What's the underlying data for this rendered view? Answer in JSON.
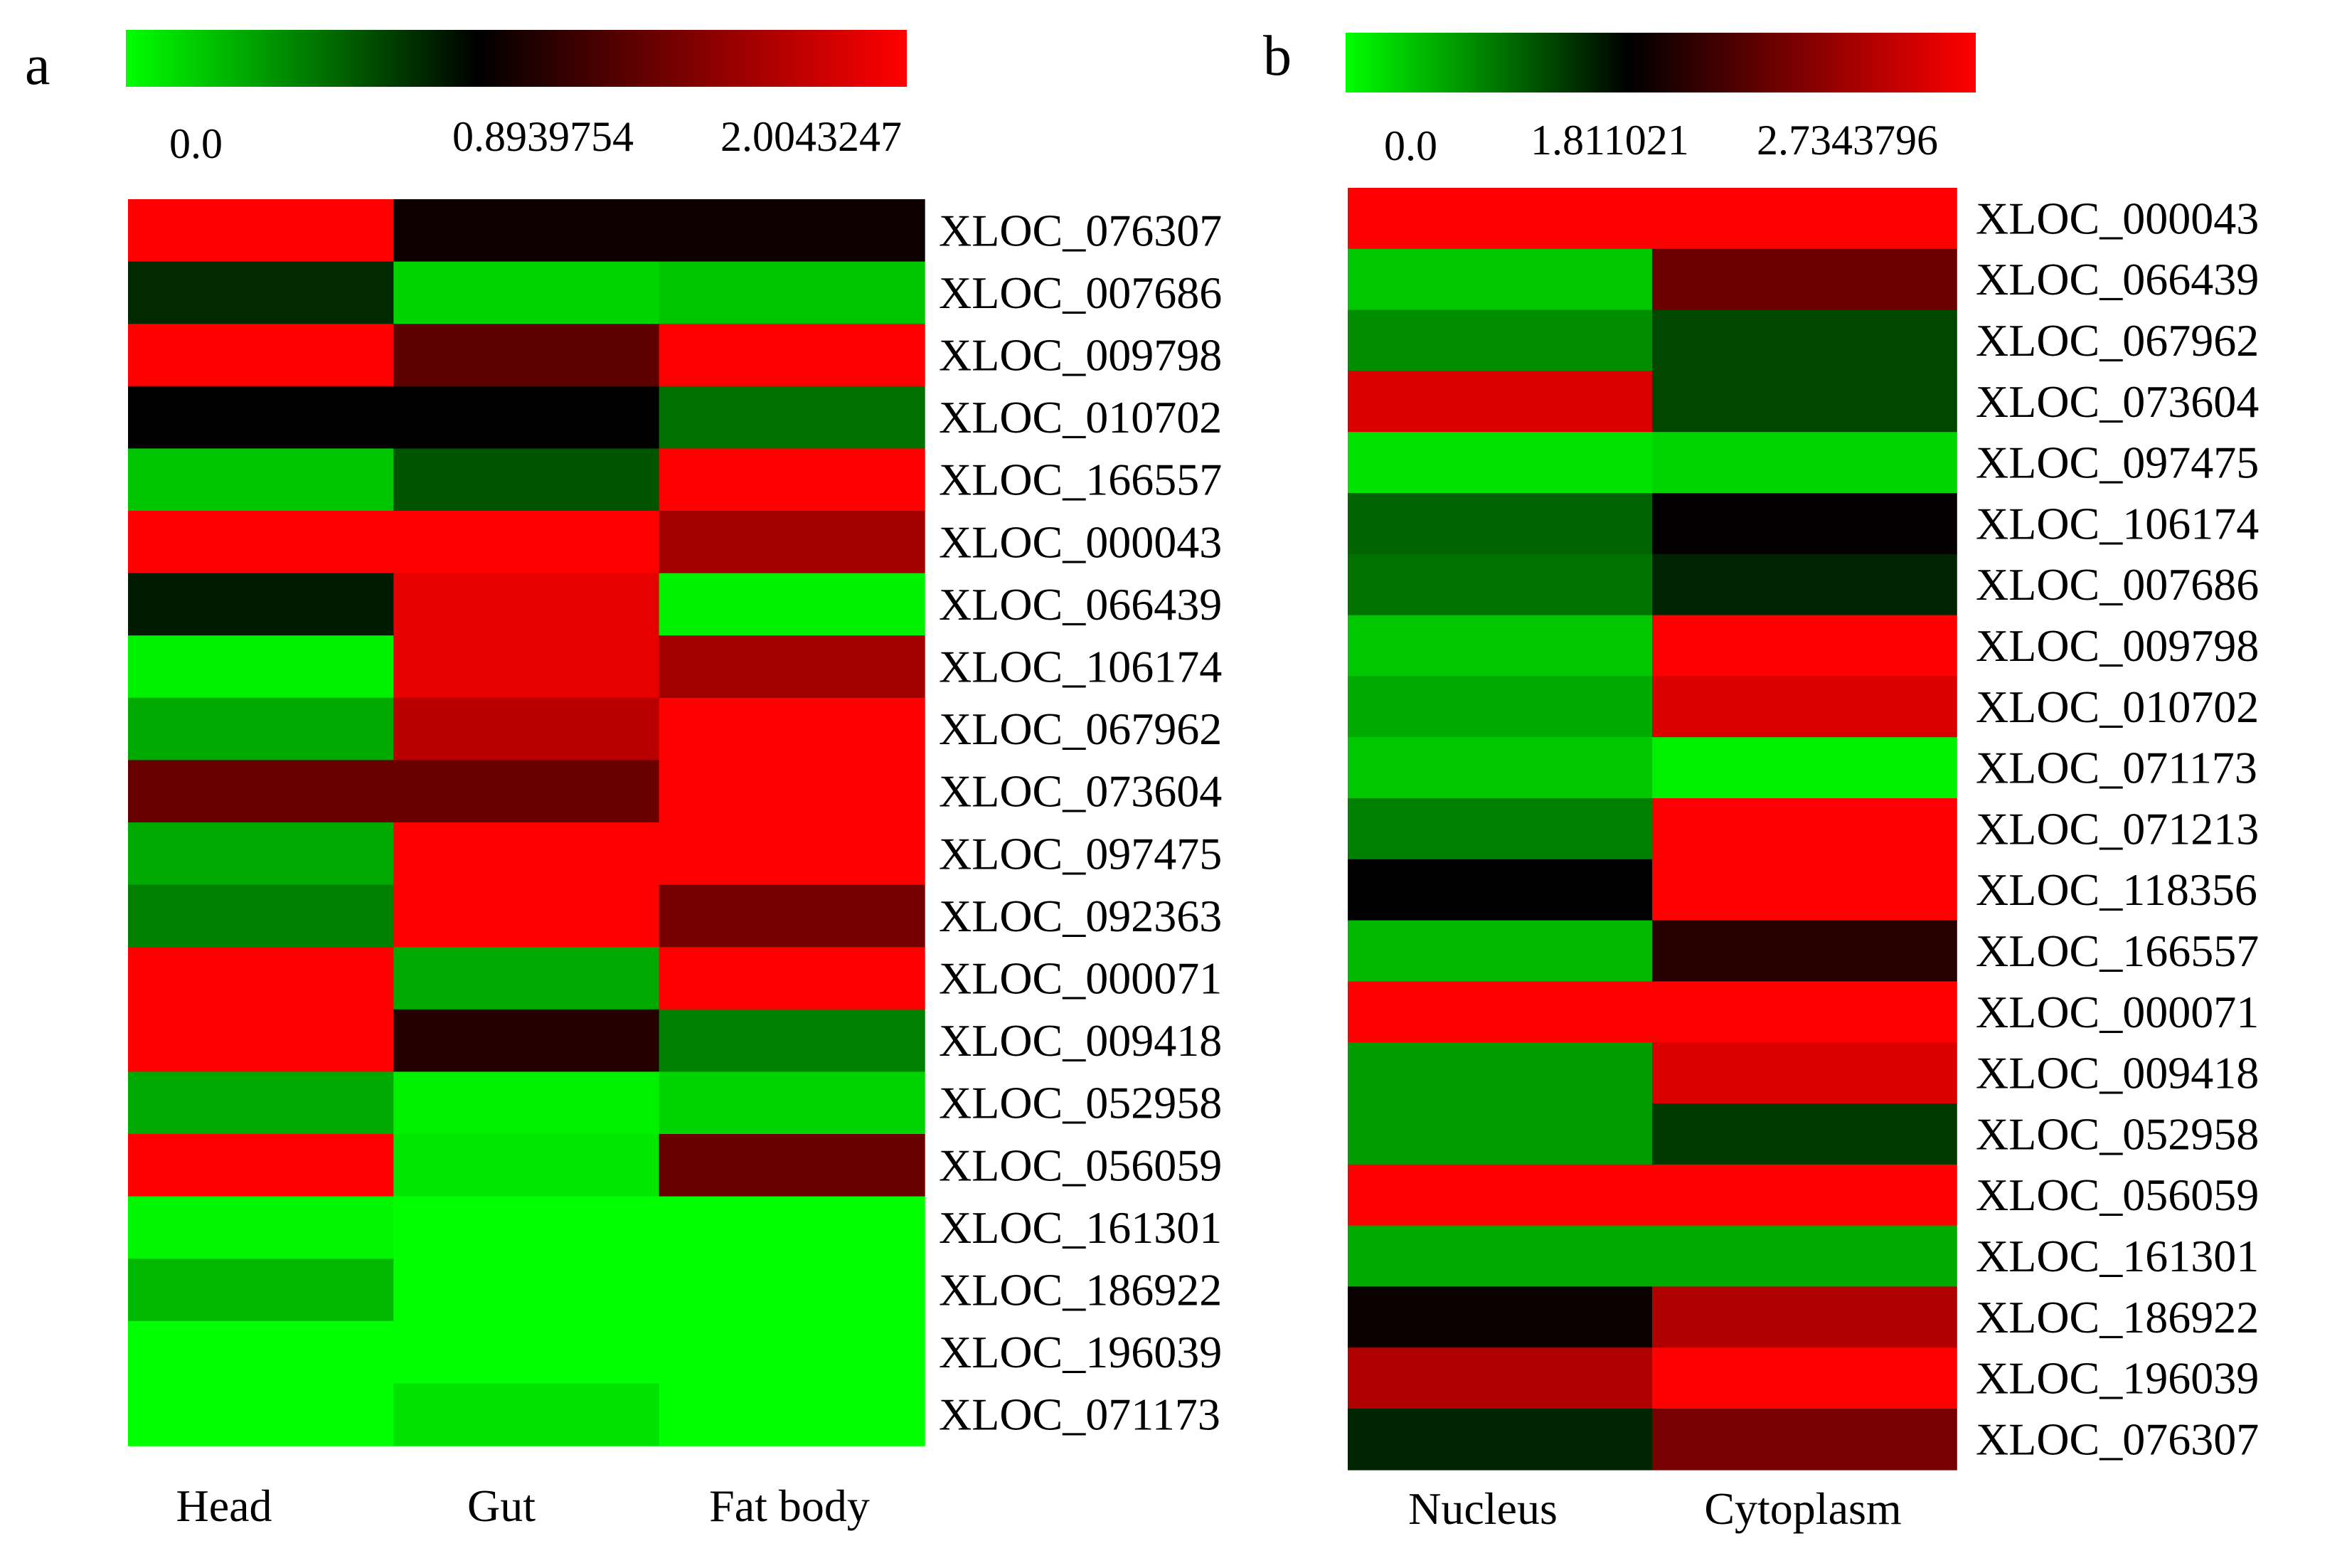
{
  "colors": {
    "low": "#00ff00",
    "mid": "#000000",
    "high": "#ff0000"
  },
  "chart_data": [
    {
      "type": "heatmap",
      "panel_label": "a",
      "scale": {
        "min": 0.0,
        "mid": 0.8939754,
        "max": 2.0043247,
        "tick_labels": [
          "0.0",
          "0.8939754",
          "2.0043247"
        ]
      },
      "columns": [
        "Head",
        "Gut",
        "Fat body"
      ],
      "rows": [
        "XLOC_076307",
        "XLOC_007686",
        "XLOC_009798",
        "XLOC_010702",
        "XLOC_166557",
        "XLOC_000043",
        "XLOC_066439",
        "XLOC_106174",
        "XLOC_067962",
        "XLOC_073604",
        "XLOC_097475",
        "XLOC_092363",
        "XLOC_000071",
        "XLOC_009418",
        "XLOC_052958",
        "XLOC_056059",
        "XLOC_161301",
        "XLOC_186922",
        "XLOC_196039",
        "XLOC_071173"
      ],
      "values": [
        [
          2.0,
          0.95,
          0.95
        ],
        [
          0.75,
          0.15,
          0.2
        ],
        [
          2.0,
          1.3,
          2.0
        ],
        [
          0.89,
          0.89,
          0.5
        ],
        [
          0.2,
          0.6,
          2.0
        ],
        [
          2.0,
          2.0,
          1.6
        ],
        [
          0.8,
          1.9,
          0.05
        ],
        [
          0.05,
          1.9,
          1.6
        ],
        [
          0.3,
          1.7,
          2.0
        ],
        [
          1.35,
          1.35,
          2.0
        ],
        [
          0.3,
          2.0,
          2.0
        ],
        [
          0.45,
          2.0,
          1.4
        ],
        [
          2.0,
          0.3,
          2.0
        ],
        [
          2.0,
          1.05,
          0.45
        ],
        [
          0.3,
          0.05,
          0.15
        ],
        [
          2.0,
          0.08,
          1.35
        ],
        [
          0.03,
          0.0,
          0.0
        ],
        [
          0.25,
          0.0,
          0.0
        ],
        [
          0.0,
          0.0,
          0.0
        ],
        [
          0.0,
          0.1,
          0.0
        ]
      ]
    },
    {
      "type": "heatmap",
      "panel_label": "b",
      "scale": {
        "min": 0.0,
        "mid": 1.811021,
        "max": 2.7343796,
        "tick_labels": [
          "0.0",
          "1.811021",
          "2.7343796"
        ]
      },
      "columns": [
        "Nucleus",
        "Cytoplasm"
      ],
      "rows": [
        "XLOC_000043",
        "XLOC_066439",
        "XLOC_067962",
        "XLOC_073604",
        "XLOC_097475",
        "XLOC_106174",
        "XLOC_007686",
        "XLOC_009798",
        "XLOC_010702",
        "XLOC_071173",
        "XLOC_071213",
        "XLOC_118356",
        "XLOC_166557",
        "XLOC_000071",
        "XLOC_009418",
        "XLOC_052958",
        "XLOC_056059",
        "XLOC_161301",
        "XLOC_186922",
        "XLOC_196039",
        "XLOC_076307"
      ],
      "values": [
        [
          2.73,
          2.73
        ],
        [
          0.4,
          2.2
        ],
        [
          0.8,
          1.3
        ],
        [
          2.6,
          1.3
        ],
        [
          0.2,
          0.3
        ],
        [
          1.1,
          1.82
        ],
        [
          1.0,
          1.55
        ],
        [
          0.4,
          2.73
        ],
        [
          0.6,
          2.6
        ],
        [
          0.4,
          0.1
        ],
        [
          0.9,
          2.73
        ],
        [
          1.81,
          2.73
        ],
        [
          0.5,
          1.95
        ],
        [
          2.73,
          2.73
        ],
        [
          0.7,
          2.6
        ],
        [
          0.7,
          1.4
        ],
        [
          2.73,
          2.73
        ],
        [
          0.6,
          0.6
        ],
        [
          1.85,
          2.45
        ],
        [
          2.45,
          2.73
        ],
        [
          1.55,
          2.25
        ]
      ]
    }
  ]
}
